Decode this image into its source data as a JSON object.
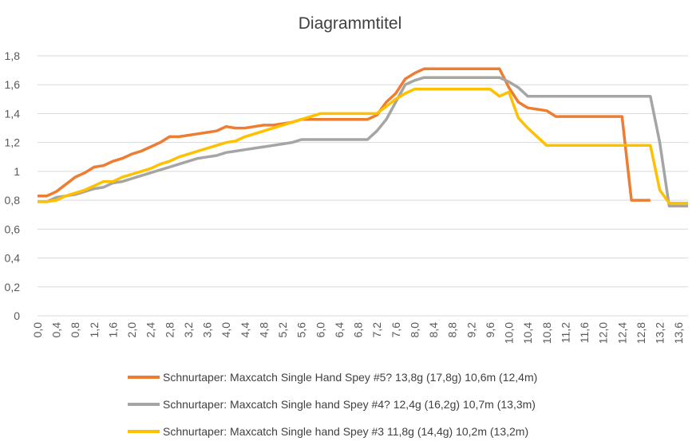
{
  "chart_data": {
    "type": "line",
    "title": "Diagrammtitel",
    "xlabel": "",
    "ylabel": "",
    "ylim": [
      0,
      1.8
    ],
    "xlim": [
      0,
      13.8
    ],
    "y_ticks": [
      "0",
      "0,2",
      "0,4",
      "0,6",
      "0,8",
      "1",
      "1,2",
      "1,4",
      "1,6",
      "1,8"
    ],
    "y_tick_values": [
      0,
      0.2,
      0.4,
      0.6,
      0.8,
      1.0,
      1.2,
      1.4,
      1.6,
      1.8
    ],
    "x_ticks": [
      "0,0",
      "0,4",
      "0,8",
      "1,2",
      "1,6",
      "2,0",
      "2,4",
      "2,8",
      "3,2",
      "3,6",
      "4,0",
      "4,4",
      "4,8",
      "5,2",
      "5,6",
      "6,0",
      "6,4",
      "6,8",
      "7,2",
      "7,6",
      "8,0",
      "8,4",
      "8,8",
      "9,2",
      "9,6",
      "10,0",
      "10,4",
      "10,8",
      "11,2",
      "11,6",
      "12,0",
      "12,4",
      "12,8",
      "13,2",
      "13,6"
    ],
    "x_tick_values": [
      0,
      0.4,
      0.8,
      1.2,
      1.6,
      2.0,
      2.4,
      2.8,
      3.2,
      3.6,
      4.0,
      4.4,
      4.8,
      5.2,
      5.6,
      6.0,
      6.4,
      6.8,
      7.2,
      7.6,
      8.0,
      8.4,
      8.8,
      9.2,
      9.6,
      10.0,
      10.4,
      10.8,
      11.2,
      11.6,
      12.0,
      12.4,
      12.8,
      13.2,
      13.6
    ],
    "grid": "horizontal",
    "legend_position": "bottom",
    "series": [
      {
        "name": "Schnurtaper: Maxcatch Single Hand Spey #5? 13,8g (17,8g)  10,6m (12,4m)",
        "color": "#ED7D31",
        "x": [
          0,
          0.2,
          0.4,
          0.6,
          0.8,
          1.0,
          1.2,
          1.4,
          1.6,
          1.8,
          2.0,
          2.2,
          2.4,
          2.6,
          2.8,
          3.0,
          3.2,
          3.4,
          3.6,
          3.8,
          4.0,
          4.2,
          4.4,
          4.6,
          4.8,
          5.0,
          5.2,
          5.4,
          5.6,
          5.8,
          6.0,
          6.2,
          6.4,
          6.6,
          6.8,
          7.0,
          7.2,
          7.4,
          7.6,
          7.8,
          8.0,
          8.2,
          8.4,
          8.6,
          8.8,
          9.0,
          9.2,
          9.4,
          9.6,
          9.8,
          10.0,
          10.2,
          10.4,
          10.6,
          10.8,
          11.0,
          11.2,
          11.4,
          11.6,
          11.8,
          12.0,
          12.2,
          12.4,
          12.6,
          12.8,
          13.0
        ],
        "y": [
          0.83,
          0.83,
          0.86,
          0.91,
          0.96,
          0.99,
          1.03,
          1.04,
          1.07,
          1.09,
          1.12,
          1.14,
          1.17,
          1.2,
          1.24,
          1.24,
          1.25,
          1.26,
          1.27,
          1.28,
          1.31,
          1.3,
          1.3,
          1.31,
          1.32,
          1.32,
          1.33,
          1.34,
          1.36,
          1.36,
          1.36,
          1.36,
          1.36,
          1.36,
          1.36,
          1.36,
          1.39,
          1.48,
          1.54,
          1.64,
          1.68,
          1.71,
          1.71,
          1.71,
          1.71,
          1.71,
          1.71,
          1.71,
          1.71,
          1.71,
          1.58,
          1.48,
          1.44,
          1.43,
          1.42,
          1.38,
          1.38,
          1.38,
          1.38,
          1.38,
          1.38,
          1.38,
          1.38,
          0.8,
          0.8,
          0.8
        ]
      },
      {
        "name": "Schnurtaper: Maxcatch Single hand Spey #4? 12,4g (16,2g) 10,7m (13,3m)",
        "color": "#A5A5A5",
        "x": [
          0,
          0.2,
          0.4,
          0.6,
          0.8,
          1.0,
          1.2,
          1.4,
          1.6,
          1.8,
          2.0,
          2.2,
          2.4,
          2.6,
          2.8,
          3.0,
          3.2,
          3.4,
          3.6,
          3.8,
          4.0,
          4.2,
          4.4,
          4.6,
          4.8,
          5.0,
          5.2,
          5.4,
          5.6,
          5.8,
          6.0,
          6.2,
          6.4,
          6.6,
          6.8,
          7.0,
          7.2,
          7.4,
          7.6,
          7.8,
          8.0,
          8.2,
          8.4,
          8.6,
          8.8,
          9.0,
          9.2,
          9.4,
          9.6,
          9.8,
          10.0,
          10.2,
          10.4,
          10.6,
          10.8,
          11.0,
          11.2,
          11.4,
          11.6,
          11.8,
          12.0,
          12.2,
          12.4,
          12.6,
          12.8,
          13.0,
          13.2,
          13.4,
          13.6,
          13.8
        ],
        "y": [
          0.79,
          0.79,
          0.82,
          0.83,
          0.84,
          0.86,
          0.88,
          0.89,
          0.92,
          0.93,
          0.95,
          0.97,
          0.99,
          1.01,
          1.03,
          1.05,
          1.07,
          1.09,
          1.1,
          1.11,
          1.13,
          1.14,
          1.15,
          1.16,
          1.17,
          1.18,
          1.19,
          1.2,
          1.22,
          1.22,
          1.22,
          1.22,
          1.22,
          1.22,
          1.22,
          1.22,
          1.28,
          1.36,
          1.48,
          1.6,
          1.63,
          1.65,
          1.65,
          1.65,
          1.65,
          1.65,
          1.65,
          1.65,
          1.65,
          1.65,
          1.62,
          1.58,
          1.52,
          1.52,
          1.52,
          1.52,
          1.52,
          1.52,
          1.52,
          1.52,
          1.52,
          1.52,
          1.52,
          1.52,
          1.52,
          1.52,
          1.2,
          0.76,
          0.76,
          0.76
        ]
      },
      {
        "name": "Schnurtaper: Maxcatch Single hand Spey #3 11,8g (14,4g) 10,2m (13,2m)",
        "color": "#FFC000",
        "x": [
          0,
          0.2,
          0.4,
          0.6,
          0.8,
          1.0,
          1.2,
          1.4,
          1.6,
          1.8,
          2.0,
          2.2,
          2.4,
          2.6,
          2.8,
          3.0,
          3.2,
          3.4,
          3.6,
          3.8,
          4.0,
          4.2,
          4.4,
          4.6,
          4.8,
          5.0,
          5.2,
          5.4,
          5.6,
          5.8,
          6.0,
          6.2,
          6.4,
          6.6,
          6.8,
          7.0,
          7.2,
          7.4,
          7.6,
          7.8,
          8.0,
          8.2,
          8.4,
          8.6,
          8.8,
          9.0,
          9.2,
          9.4,
          9.6,
          9.8,
          10.0,
          10.2,
          10.4,
          10.6,
          10.8,
          11.0,
          11.2,
          11.4,
          11.6,
          11.8,
          12.0,
          12.2,
          12.4,
          12.6,
          12.8,
          13.0,
          13.2,
          13.4,
          13.6,
          13.8
        ],
        "y": [
          0.79,
          0.79,
          0.8,
          0.83,
          0.85,
          0.87,
          0.9,
          0.93,
          0.93,
          0.96,
          0.98,
          1.0,
          1.02,
          1.05,
          1.07,
          1.1,
          1.12,
          1.14,
          1.16,
          1.18,
          1.2,
          1.21,
          1.24,
          1.26,
          1.28,
          1.3,
          1.32,
          1.34,
          1.36,
          1.38,
          1.4,
          1.4,
          1.4,
          1.4,
          1.4,
          1.4,
          1.4,
          1.45,
          1.5,
          1.54,
          1.57,
          1.57,
          1.57,
          1.57,
          1.57,
          1.57,
          1.57,
          1.57,
          1.57,
          1.52,
          1.55,
          1.37,
          1.3,
          1.24,
          1.18,
          1.18,
          1.18,
          1.18,
          1.18,
          1.18,
          1.18,
          1.18,
          1.18,
          1.18,
          1.18,
          1.18,
          0.87,
          0.78,
          0.78,
          0.78
        ]
      }
    ]
  }
}
